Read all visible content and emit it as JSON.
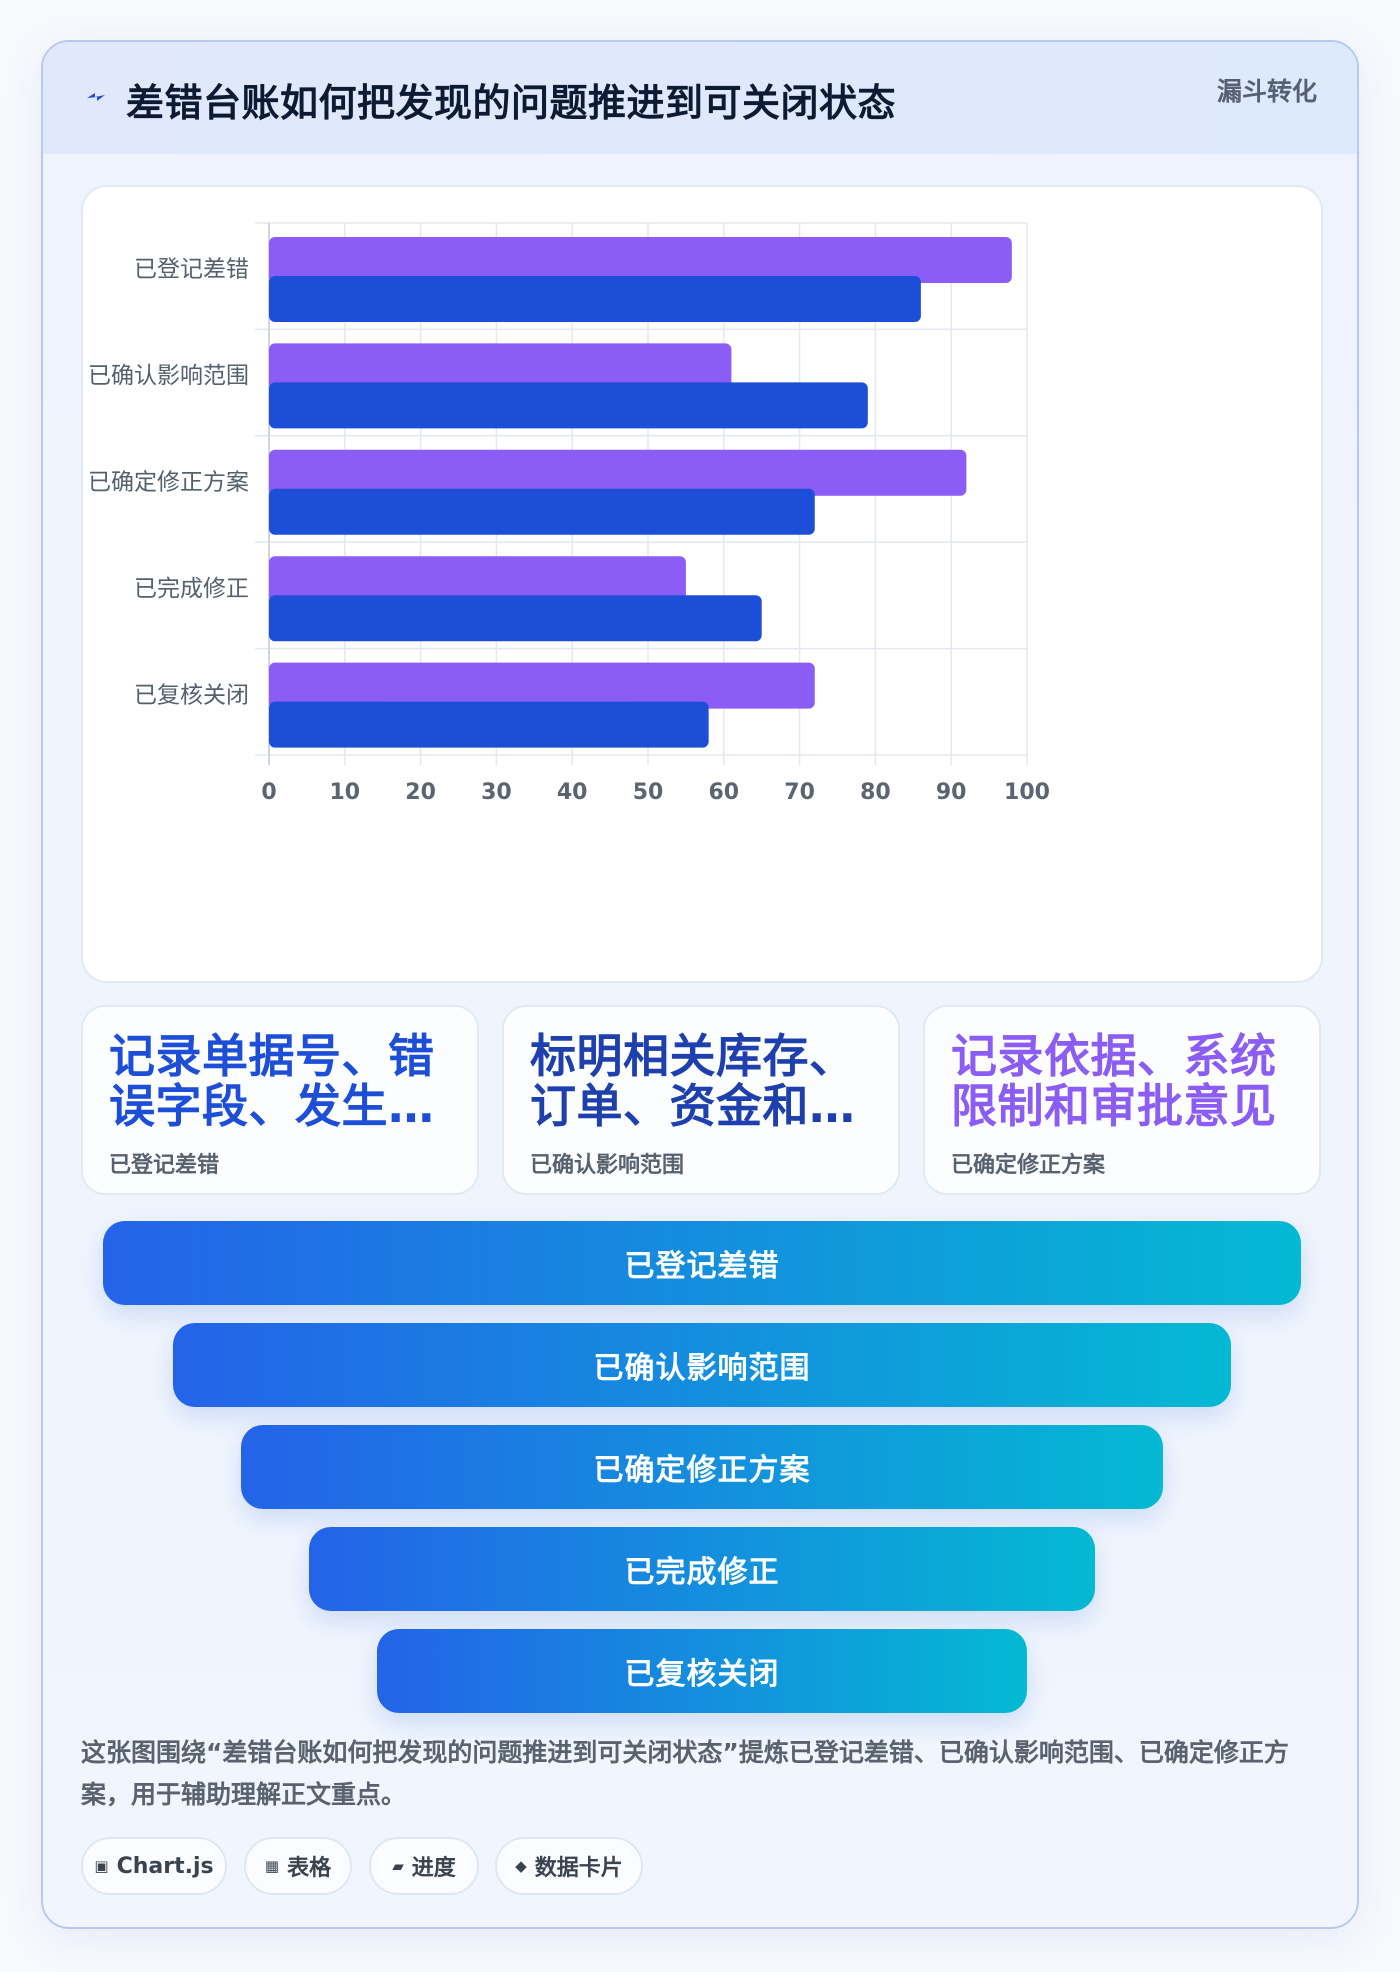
{
  "header": {
    "title": "差错台账如何把发现的问题推进到可关闭状态",
    "tag": "漏斗转化"
  },
  "chart_data": {
    "type": "bar",
    "orientation": "horizontal",
    "categories": [
      "已登记差错",
      "已确认影响范围",
      "已确定修正方案",
      "已完成修正",
      "已复核关闭"
    ],
    "series": [
      {
        "values": [
          98,
          61,
          92,
          55,
          72
        ],
        "color": "#8b5cf6"
      },
      {
        "values": [
          86,
          79,
          72,
          65,
          58
        ],
        "color": "#1d4ed8"
      }
    ],
    "xlim": [
      0,
      100
    ],
    "xticks": [
      "0",
      "10",
      "20",
      "30",
      "40",
      "50",
      "60",
      "70",
      "80",
      "90",
      "100"
    ],
    "grid": true
  },
  "kpis": [
    {
      "value": "记录单据号、错误字段、发生时间和发现人",
      "label": "已登记差错",
      "color": "#1d4ed8"
    },
    {
      "value": "标明相关库存、订单、资金和报表口径",
      "label": "已确认影响范围",
      "color": "#1e40af"
    },
    {
      "value": "记录依据、系统限制和审批意见",
      "label": "已确定修正方案",
      "color": "#8b5cf6"
    }
  ],
  "funnel": {
    "stages": [
      "已登记差错",
      "已确认影响范围",
      "已确定修正方案",
      "已完成修正",
      "已复核关闭"
    ]
  },
  "description": "这张图围绕“差错台账如何把发现的问题推进到可关闭状态”提炼已登记差错、已确认影响范围、已确定修正方案，用于辅助理解正文重点。",
  "chips": [
    {
      "glyph": "▣",
      "label": "Chart.js",
      "icon": "chart-icon"
    },
    {
      "glyph": "▦",
      "label": "表格",
      "icon": "table-icon"
    },
    {
      "glyph": "▰",
      "label": "进度",
      "icon": "progress-icon"
    },
    {
      "glyph": "◆",
      "label": "数据卡片",
      "icon": "data-card-icon"
    }
  ]
}
